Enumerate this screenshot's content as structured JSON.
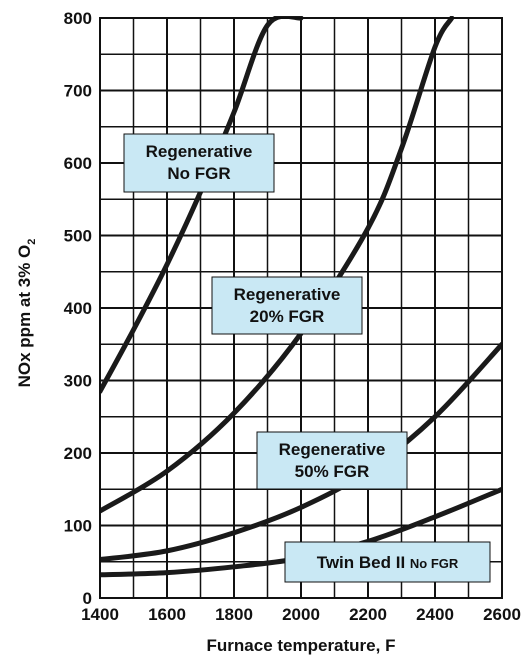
{
  "chart_data": {
    "type": "line",
    "xlabel": "Furnace temperature, F",
    "ylabel": "NOx ppm at 3% O",
    "ylabel_subscript": "2",
    "xlim": [
      1400,
      2600
    ],
    "ylim": [
      0,
      800
    ],
    "x_ticks": [
      1400,
      1600,
      1800,
      2000,
      2200,
      2400,
      2600
    ],
    "y_ticks": [
      0,
      100,
      200,
      300,
      400,
      500,
      600,
      700,
      800
    ],
    "grid": true,
    "series": [
      {
        "name": "Regenerative No FGR",
        "x": [
          1400,
          1500,
          1600,
          1700,
          1800,
          1900,
          2000
        ],
        "y": [
          285,
          370,
          460,
          560,
          670,
          790,
          800
        ]
      },
      {
        "name": "Regenerative 20% FGR",
        "x": [
          1400,
          1600,
          1800,
          2000,
          2200,
          2300,
          2400,
          2450
        ],
        "y": [
          120,
          175,
          255,
          365,
          510,
          620,
          760,
          800
        ]
      },
      {
        "name": "Regenerative 50% FGR",
        "x": [
          1400,
          1600,
          1800,
          2000,
          2200,
          2400,
          2600
        ],
        "y": [
          53,
          65,
          90,
          125,
          175,
          250,
          350
        ]
      },
      {
        "name": "Twin Bed II No FGR",
        "x": [
          1400,
          1600,
          1800,
          2000,
          2200,
          2400,
          2600
        ],
        "y": [
          32,
          35,
          43,
          55,
          78,
          112,
          150
        ]
      }
    ],
    "callouts": [
      {
        "lines": [
          "Regenerative",
          "No FGR"
        ]
      },
      {
        "lines": [
          "Regenerative",
          "20% FGR"
        ]
      },
      {
        "lines": [
          "Regenerative",
          "50% FGR"
        ]
      },
      {
        "main": "Twin Bed II",
        "small": "No FGR"
      }
    ]
  }
}
